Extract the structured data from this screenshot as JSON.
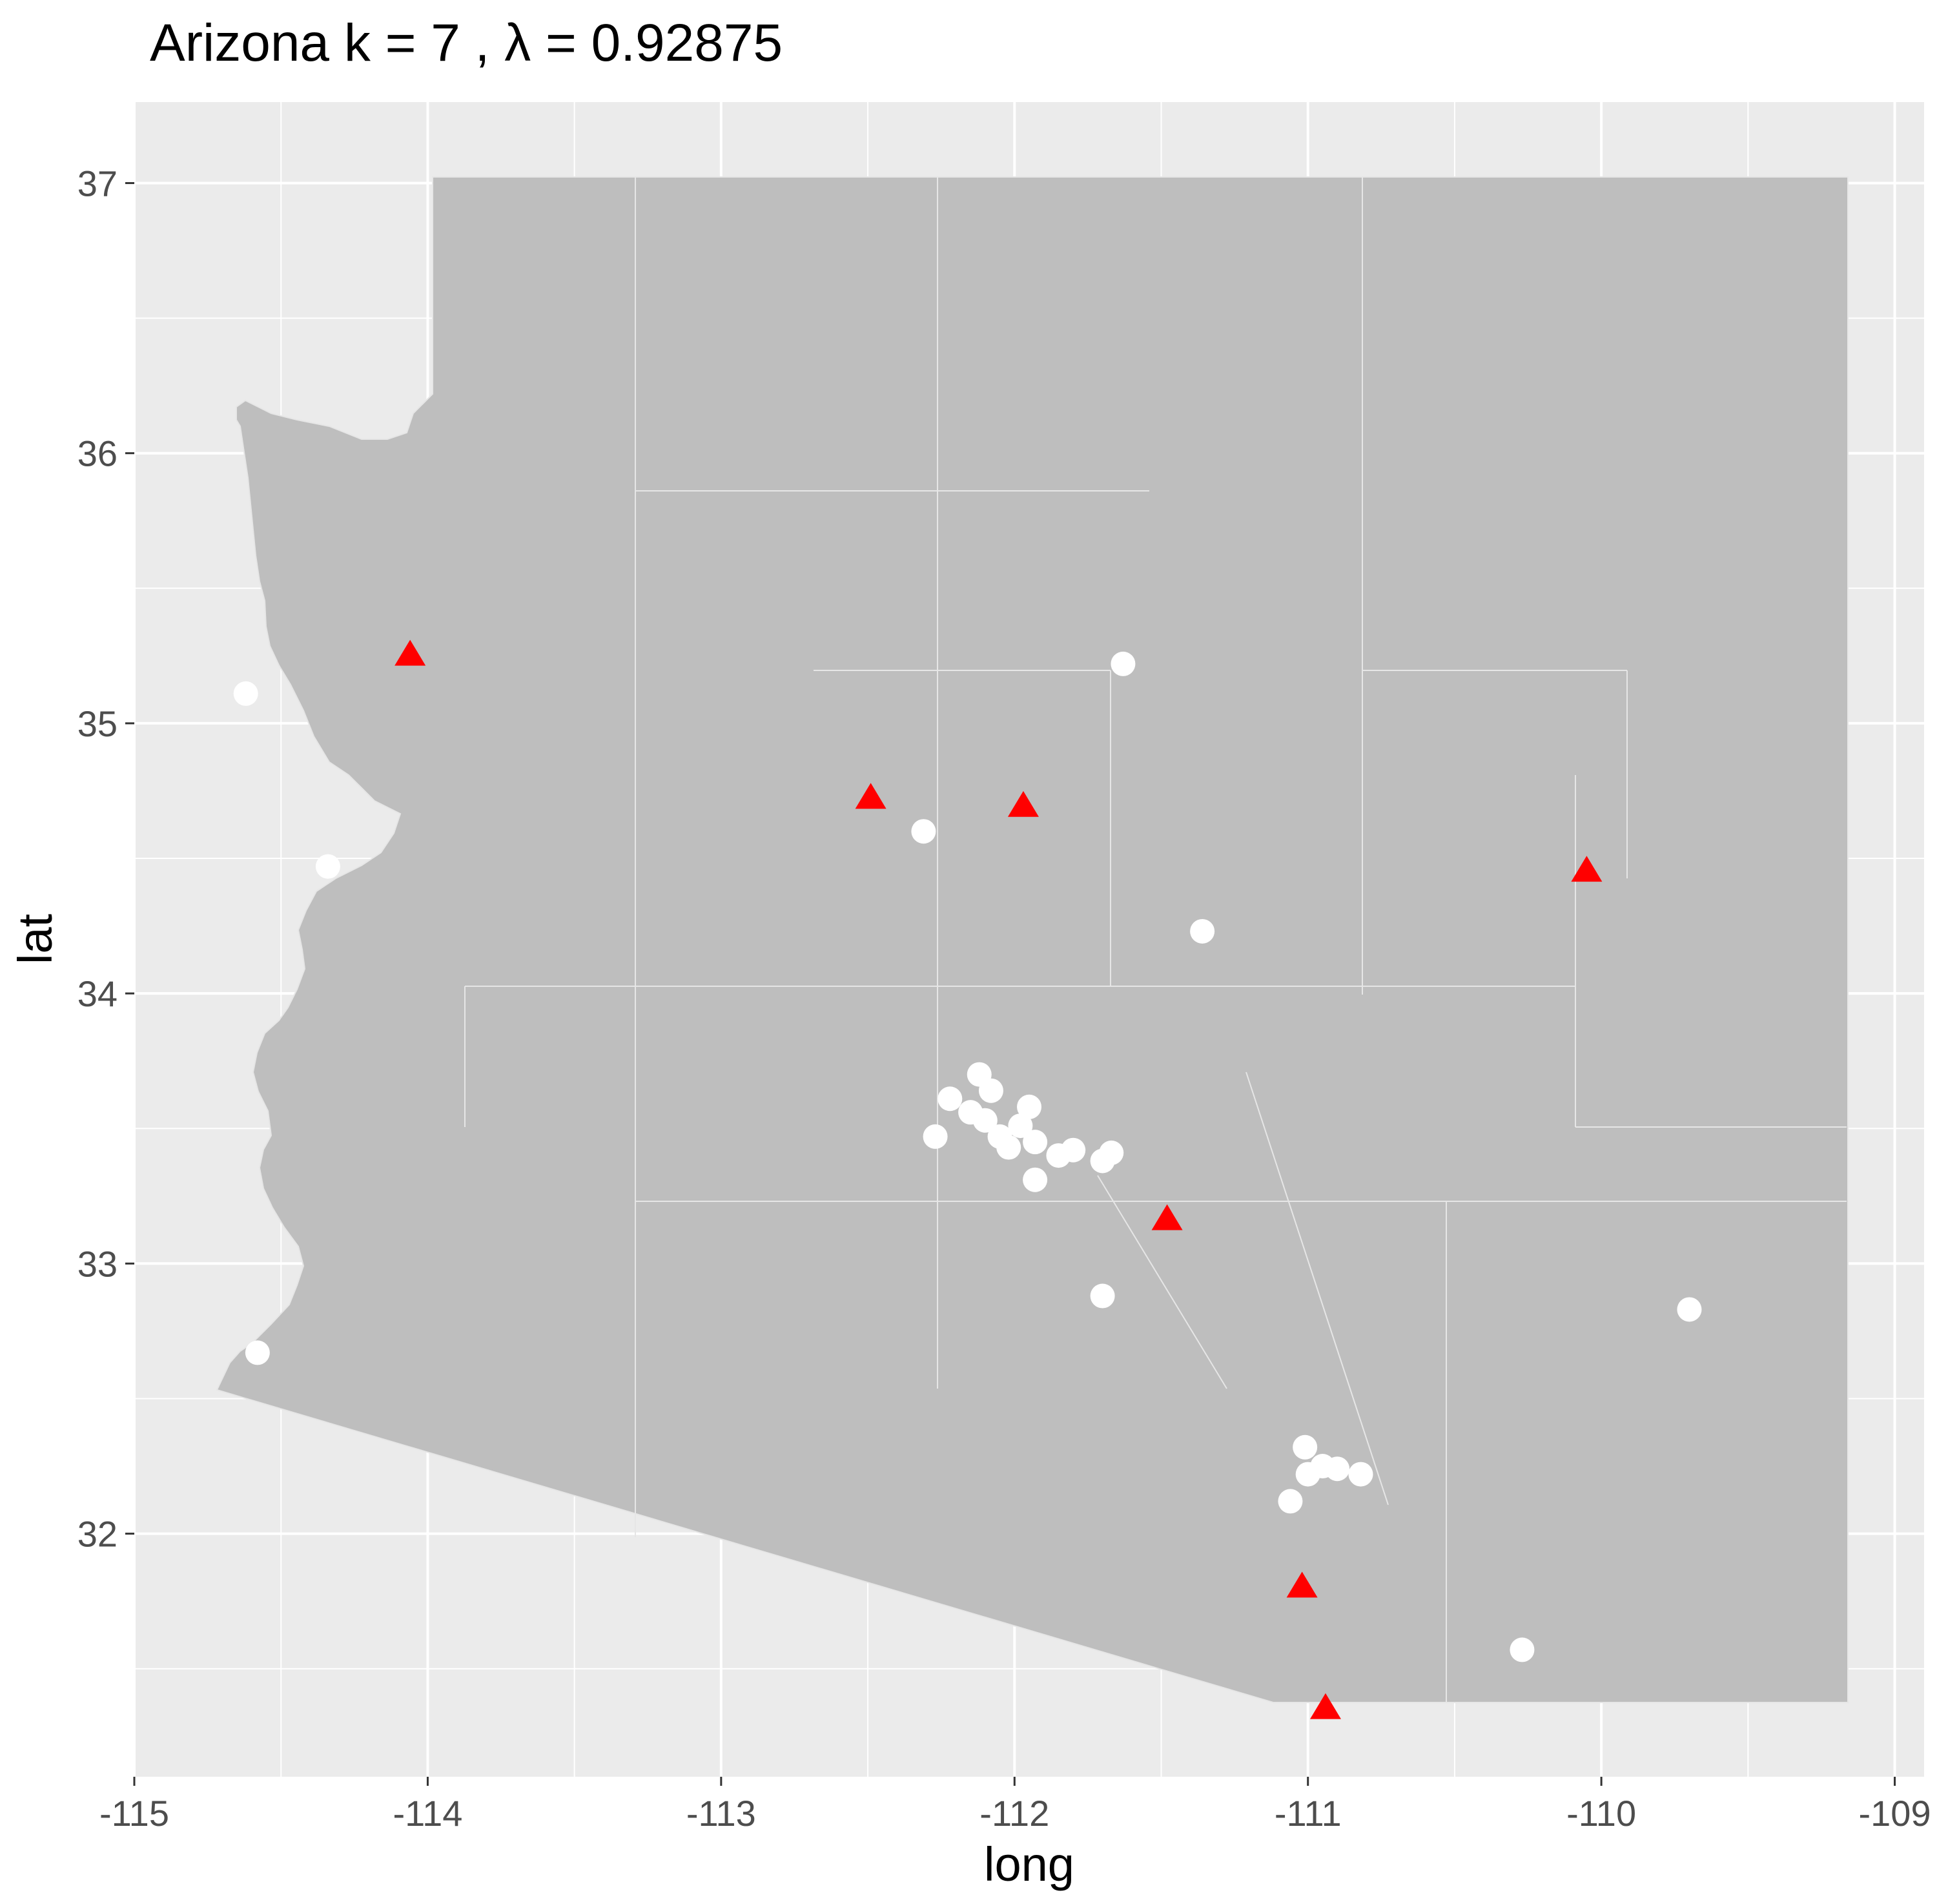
{
  "title": "Arizona  k =  7 ,  λ  =  0.92875",
  "chart_data": {
    "type": "scatter",
    "title": "Arizona  k =  7 ,  λ  =  0.92875",
    "xlabel": "long",
    "ylabel": "lat",
    "xlim": [
      -115.0,
      -108.9
    ],
    "ylim": [
      31.1,
      37.3
    ],
    "xticks": [
      -115,
      -114,
      -113,
      -112,
      -111,
      -110,
      -109
    ],
    "xtick_labels": [
      "-115",
      "-114",
      "-113",
      "-112",
      "-111",
      "-110",
      "-109"
    ],
    "yticks": [
      32,
      33,
      34,
      35,
      36,
      37
    ],
    "ytick_labels": [
      "32",
      "33",
      "34",
      "35",
      "36",
      "37"
    ],
    "grid": true,
    "legend": "none",
    "colors": {
      "panel_background": "#ebebeb",
      "grid_major": "#ffffff",
      "state_fill": "#bebebe",
      "boundary_lines": "#e6e6e6",
      "triangle_series": "#ff0000",
      "circle_series": "#ffffff"
    },
    "series": [
      {
        "marker": "triangle",
        "color": "#ff0000",
        "x": [
          -114.06,
          -112.49,
          -111.97,
          -111.48,
          -110.05,
          -111.02,
          -110.94
        ],
        "y": [
          35.25,
          34.72,
          34.69,
          33.16,
          34.45,
          31.8,
          31.35
        ]
      },
      {
        "marker": "circle",
        "color": "#ffffff",
        "x": [
          -114.62,
          -114.34,
          -112.31,
          -111.63,
          -111.36,
          -112.27,
          -112.22,
          -112.15,
          -112.1,
          -112.05,
          -112.02,
          -111.98,
          -111.95,
          -111.93,
          -111.85,
          -111.8,
          -111.7,
          -111.67,
          -111.93,
          -112.12,
          -112.08,
          -111.7,
          -111.01,
          -111.0,
          -110.95,
          -110.9,
          -110.82,
          -111.06,
          -109.7,
          -110.27,
          -114.58
        ],
        "y": [
          35.11,
          34.47,
          34.6,
          35.22,
          34.23,
          33.47,
          33.61,
          33.56,
          33.53,
          33.47,
          33.43,
          33.51,
          33.58,
          33.45,
          33.4,
          33.42,
          33.38,
          33.41,
          33.31,
          33.7,
          33.64,
          32.88,
          32.32,
          32.22,
          32.25,
          32.24,
          32.22,
          32.12,
          32.83,
          31.57,
          32.67
        ]
      }
    ]
  }
}
